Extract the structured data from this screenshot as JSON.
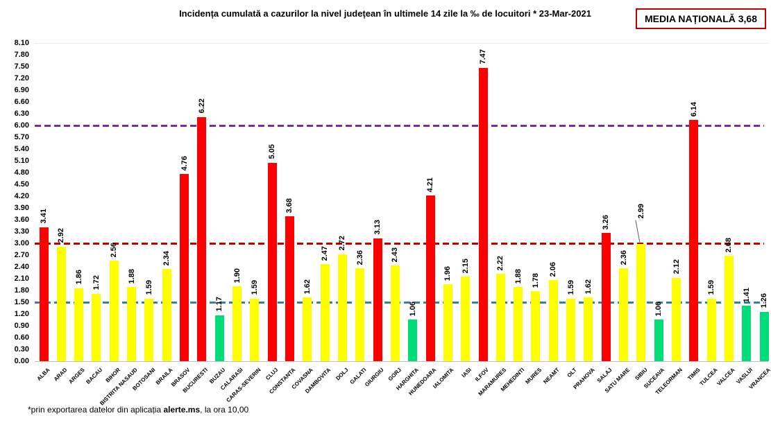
{
  "title": "Incidența cumulată a cazurilor la nivel județean în ultimele 14 zile la ‰ de locuitori *  23-Mar-2021",
  "national_average_box": "MEDIA NAȚIONALĂ 3,68",
  "footnote": {
    "prefix": "*prin exportarea datelor din aplicația ",
    "bold": "alerte.ms",
    "suffix": ", la ora 10,00"
  },
  "chart_data": {
    "type": "bar",
    "title": "Incidența cumulată a cazurilor la nivel județean în ultimele 14 zile la ‰ de locuitori * 23-Mar-2021",
    "categories": [
      "ALBA",
      "ARAD",
      "ARGES",
      "BACAU",
      "BIHOR",
      "BISTRITA NASAUD",
      "BOTOSANI",
      "BRAILA",
      "BRASOV",
      "BUCURESTI",
      "BUZAU",
      "CALARASI",
      "CARAS-SEVERIN",
      "CLUJ",
      "CONSTANTA",
      "COVASNA",
      "DAMBOVITA",
      "DOLJ",
      "GALATI",
      "GIURGIU",
      "GORJ",
      "HARGHITA",
      "HUNEDOARA",
      "IALOMITA",
      "IASI",
      "ILFOV",
      "MARAMURES",
      "MEHEDINTI",
      "MURES",
      "NEAMT",
      "OLT",
      "PRAHOVA",
      "SALAJ",
      "SATU MARE",
      "SIBIU",
      "SUCEAVA",
      "TELEORMAN",
      "TIMIS",
      "TULCEA",
      "VALCEA",
      "VASLUI",
      "VRANCEA"
    ],
    "values": [
      3.41,
      2.92,
      1.86,
      1.72,
      2.56,
      1.88,
      1.59,
      2.34,
      4.76,
      6.22,
      1.17,
      1.9,
      1.59,
      5.05,
      3.68,
      1.62,
      2.47,
      2.72,
      2.36,
      3.13,
      2.43,
      1.06,
      4.21,
      1.96,
      2.15,
      7.47,
      2.22,
      1.88,
      1.78,
      2.06,
      1.59,
      1.62,
      3.26,
      2.36,
      2.99,
      1.06,
      2.12,
      6.14,
      1.59,
      2.68,
      1.41,
      1.26
    ],
    "xlabel": "",
    "ylabel": "",
    "ylim": [
      0,
      8.1
    ],
    "ytick_step": 0.3,
    "grid": false,
    "legend": false,
    "value_labels": true,
    "bar_colors": {
      "green": "#00DC78",
      "yellow": "#FFFF00",
      "red": "#FF0000"
    },
    "color_rules": {
      "green_below": 1.5,
      "red_at_or_above": 3.0
    },
    "reference_lines": [
      {
        "value": 1.5,
        "color": "#31849B",
        "style": "dashed"
      },
      {
        "value": 3.0,
        "color": "#C00000",
        "style": "dashed"
      },
      {
        "value": 6.0,
        "color": "#7030A0",
        "style": "dashed"
      }
    ],
    "callouts": [
      {
        "category": "SIBIU"
      }
    ]
  }
}
